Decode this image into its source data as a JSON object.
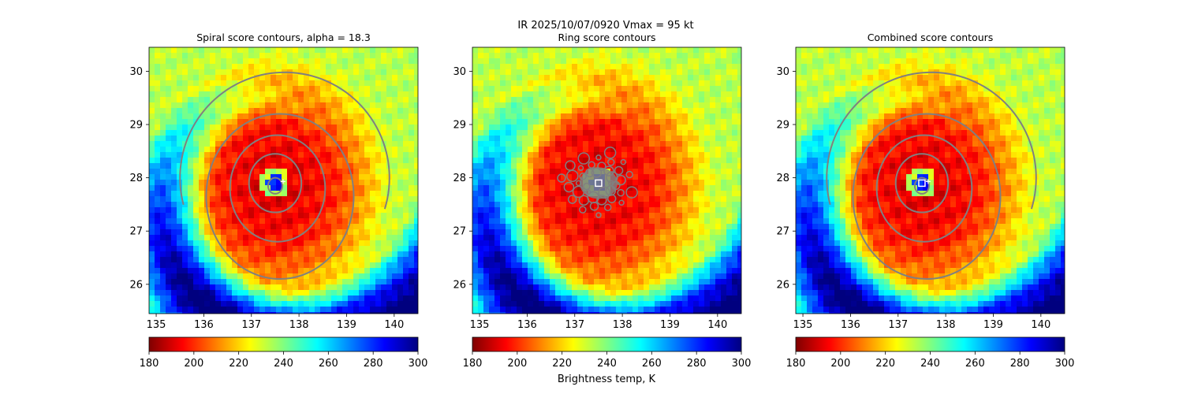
{
  "figure": {
    "suptitle_line1": "IR  2025/10/07/0920    Vmax = 95 kt",
    "colorbar_label": "Brightness temp, K",
    "colormap": [
      "#7f0000",
      "#ff0000",
      "#ff8000",
      "#ffff00",
      "#80ff80",
      "#00ffff",
      "#0080ff",
      "#0000ff",
      "#00007f"
    ],
    "contour_color": "#808080"
  },
  "chart_data": [
    {
      "type": "heatmap",
      "title": "Spiral score contours, alpha = 18.3",
      "x_ticks": [
        "135",
        "136",
        "137",
        "138",
        "139",
        "140"
      ],
      "y_ticks": [
        "30",
        "29",
        "28",
        "27",
        "26"
      ],
      "xlim": [
        134.85,
        140.5
      ],
      "ylim": [
        25.45,
        30.45
      ],
      "storm_center": [
        137.5,
        27.9
      ],
      "colorbar": {
        "min": 180,
        "max": 300,
        "ticks": [
          "180",
          "200",
          "220",
          "240",
          "260",
          "280",
          "300"
        ]
      },
      "marker": "plus"
    },
    {
      "type": "heatmap",
      "title": "Ring score contours",
      "x_ticks": [
        "135",
        "136",
        "137",
        "138",
        "139",
        "140"
      ],
      "y_ticks": [
        "30",
        "29",
        "28",
        "27",
        "26"
      ],
      "xlim": [
        134.85,
        140.5
      ],
      "ylim": [
        25.45,
        30.45
      ],
      "storm_center": [
        137.5,
        27.9
      ],
      "colorbar": {
        "min": 180,
        "max": 300,
        "ticks": [
          "180",
          "200",
          "220",
          "240",
          "260",
          "280",
          "300"
        ]
      },
      "marker": "square"
    },
    {
      "type": "heatmap",
      "title": "Combined score contours",
      "x_ticks": [
        "135",
        "136",
        "137",
        "138",
        "139",
        "140"
      ],
      "y_ticks": [
        "30",
        "29",
        "28",
        "27",
        "26"
      ],
      "xlim": [
        134.85,
        140.5
      ],
      "ylim": [
        25.45,
        30.45
      ],
      "storm_center": [
        137.5,
        27.9
      ],
      "colorbar": {
        "min": 180,
        "max": 300,
        "ticks": [
          "180",
          "200",
          "220",
          "240",
          "260",
          "280",
          "300"
        ]
      },
      "marker": "square-plus"
    }
  ]
}
